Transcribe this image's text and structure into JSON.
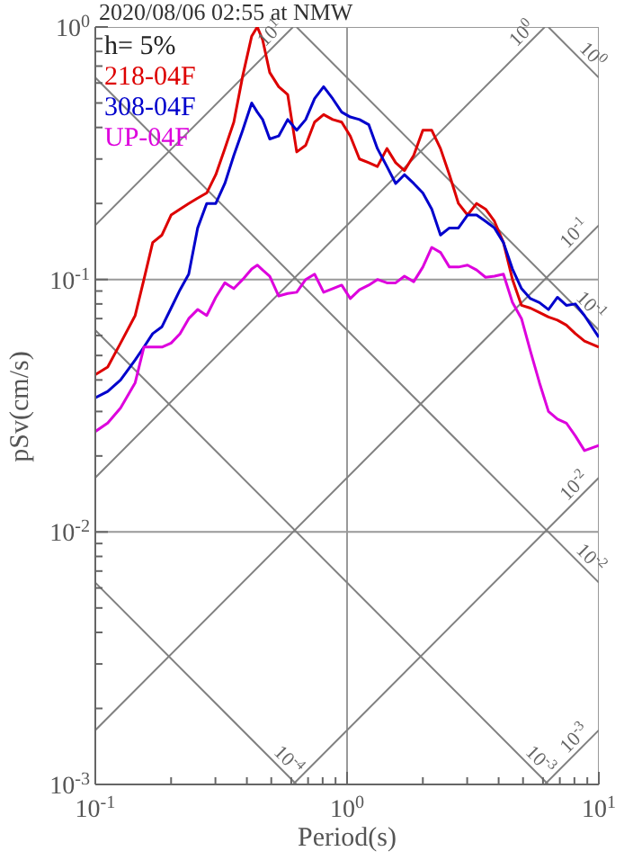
{
  "chart_data": {
    "type": "line",
    "title": "2020/08/06 02:55 at NMW",
    "xlabel": "Period(s)",
    "ylabel": "pSv(cm/s)",
    "annotations": [
      "h= 5%"
    ],
    "log": "xy",
    "grid": true,
    "legend": "top left",
    "marker": "none",
    "line_style": "solid",
    "xlim": [
      0.1,
      10
    ],
    "ylim": [
      0.001,
      1
    ],
    "xticks": [
      {
        "value": 0.1,
        "label": "10$^{-1}$"
      },
      {
        "value": 0.2,
        "label": null
      },
      {
        "value": 0.3,
        "label": null
      },
      {
        "value": 0.4,
        "label": null
      },
      {
        "value": 0.5,
        "label": null
      },
      {
        "value": 0.6,
        "label": null
      },
      {
        "value": 0.7,
        "label": null
      },
      {
        "value": 0.8,
        "label": null
      },
      {
        "value": 0.9,
        "label": null
      },
      {
        "value": 1,
        "label": "10$^{0}$"
      },
      {
        "value": 2,
        "label": null
      },
      {
        "value": 3,
        "label": null
      },
      {
        "value": 4,
        "label": null
      },
      {
        "value": 5,
        "label": null
      },
      {
        "value": 6,
        "label": null
      },
      {
        "value": 7,
        "label": null
      },
      {
        "value": 8,
        "label": null
      },
      {
        "value": 9,
        "label": null
      },
      {
        "value": 10,
        "label": "10$^{1}$"
      }
    ],
    "yticks": [
      {
        "value": 0.001,
        "label": "10$^{-3}$"
      },
      {
        "value": 0.002,
        "label": null
      },
      {
        "value": 0.003,
        "label": null
      },
      {
        "value": 0.004,
        "label": null
      },
      {
        "value": 0.005,
        "label": null
      },
      {
        "value": 0.006,
        "label": null
      },
      {
        "value": 0.007,
        "label": null
      },
      {
        "value": 0.008,
        "label": null
      },
      {
        "value": 0.009,
        "label": null
      },
      {
        "value": 0.01,
        "label": "10$^{-2}$"
      },
      {
        "value": 0.02,
        "label": null
      },
      {
        "value": 0.03,
        "label": null
      },
      {
        "value": 0.04,
        "label": null
      },
      {
        "value": 0.05,
        "label": null
      },
      {
        "value": 0.06,
        "label": null
      },
      {
        "value": 0.07,
        "label": null
      },
      {
        "value": 0.08,
        "label": null
      },
      {
        "value": 0.09,
        "label": null
      },
      {
        "value": 0.1,
        "label": "10$^{-1}$"
      },
      {
        "value": 0.2,
        "label": null
      },
      {
        "value": 0.3,
        "label": null
      },
      {
        "value": 0.4,
        "label": null
      },
      {
        "value": 0.5,
        "label": null
      },
      {
        "value": 0.6,
        "label": null
      },
      {
        "value": 0.7,
        "label": null
      },
      {
        "value": 0.8,
        "label": null
      },
      {
        "value": 0.9,
        "label": null
      },
      {
        "value": 1,
        "label": "10$^{0}$"
      }
    ],
    "x": [
      0.1,
      0.112,
      0.126,
      0.144,
      0.156,
      0.169,
      0.184,
      0.2,
      0.217,
      0.235,
      0.255,
      0.277,
      0.301,
      0.327,
      0.355,
      0.385,
      0.418,
      0.44,
      0.462,
      0.493,
      0.535,
      0.581,
      0.631,
      0.685,
      0.743,
      0.807,
      0.877,
      0.952,
      1.03,
      1.12,
      1.22,
      1.32,
      1.44,
      1.56,
      1.69,
      1.84,
      2.0,
      2.17,
      2.35,
      2.55,
      2.77,
      3.01,
      3.27,
      3.55,
      3.85,
      4.18,
      4.54,
      4.93,
      5.35,
      5.81,
      6.31,
      6.85,
      7.43,
      8.07,
      8.77,
      10
    ],
    "series": [
      {
        "name": "218-04F",
        "color": "#dd0000",
        "values": [
          0.042,
          0.045,
          0.056,
          0.072,
          0.1,
          0.14,
          0.15,
          0.18,
          0.19,
          0.2,
          0.21,
          0.22,
          0.26,
          0.33,
          0.42,
          0.64,
          0.92,
          1,
          0.89,
          0.66,
          0.58,
          0.54,
          0.32,
          0.34,
          0.42,
          0.45,
          0.43,
          0.42,
          0.37,
          0.3,
          0.29,
          0.28,
          0.33,
          0.29,
          0.27,
          0.31,
          0.39,
          0.39,
          0.33,
          0.26,
          0.2,
          0.18,
          0.2,
          0.19,
          0.17,
          0.14,
          0.1,
          0.079,
          0.077,
          0.074,
          0.071,
          0.069,
          0.066,
          0.061,
          0.057,
          0.054
        ]
      },
      {
        "name": "308-04F",
        "color": "#0000cc",
        "values": [
          0.034,
          0.036,
          0.04,
          0.048,
          0.054,
          0.061,
          0.065,
          0.077,
          0.091,
          0.105,
          0.16,
          0.2,
          0.2,
          0.24,
          0.31,
          0.39,
          0.5,
          0.46,
          0.43,
          0.36,
          0.37,
          0.43,
          0.39,
          0.43,
          0.52,
          0.58,
          0.52,
          0.46,
          0.44,
          0.43,
          0.41,
          0.33,
          0.28,
          0.24,
          0.26,
          0.24,
          0.22,
          0.19,
          0.15,
          0.16,
          0.16,
          0.18,
          0.18,
          0.17,
          0.16,
          0.14,
          0.11,
          0.092,
          0.084,
          0.081,
          0.076,
          0.085,
          0.079,
          0.08,
          0.072,
          0.059
        ]
      },
      {
        "name": "UP-04F",
        "color": "#dd00dd",
        "values": [
          0.025,
          0.027,
          0.031,
          0.039,
          0.054,
          0.054,
          0.054,
          0.056,
          0.061,
          0.07,
          0.076,
          0.072,
          0.085,
          0.097,
          0.092,
          0.1,
          0.11,
          0.114,
          0.109,
          0.103,
          0.086,
          0.088,
          0.089,
          0.1,
          0.105,
          0.089,
          0.092,
          0.095,
          0.084,
          0.091,
          0.095,
          0.1,
          0.097,
          0.097,
          0.103,
          0.098,
          0.112,
          0.134,
          0.128,
          0.112,
          0.112,
          0.114,
          0.109,
          0.102,
          0.103,
          0.105,
          0.081,
          0.07,
          0.052,
          0.039,
          0.03,
          0.028,
          0.027,
          0.024,
          0.021,
          0.022
        ]
      },
      {
        "name": "10$^{1}$",
        "color": "#808080",
        "x": [
          0.1,
          0.61
        ],
        "values": [
          0.164,
          1
        ]
      },
      {
        "name": "10$^{0}$",
        "color": "#808080",
        "x": [
          0.1,
          6.1
        ],
        "values": [
          0.0164,
          1
        ]
      },
      {
        "name": "10$^{-1}$",
        "color": "#808080",
        "x": [
          0.1,
          10
        ],
        "values": [
          0.00164,
          0.164
        ]
      },
      {
        "name": "10$^{-2}$",
        "color": "#808080",
        "x": [
          0.61,
          10
        ],
        "values": [
          0.001,
          0.0164
        ]
      },
      {
        "name": "10$^{-3}$",
        "color": "#808080",
        "x": [
          6.1,
          10
        ],
        "values": [
          0.001,
          0.00164
        ]
      },
      {
        "name": "10$^{0}$",
        "color": "#808080",
        "x": [
          6.3,
          10
        ],
        "values": [
          1,
          0.63
        ]
      },
      {
        "name": "10$^{-1}$",
        "color": "#808080",
        "x": [
          0.63,
          10
        ],
        "values": [
          1,
          0.063
        ]
      },
      {
        "name": "10$^{-2}$",
        "color": "#808080",
        "x": [
          0.1,
          10
        ],
        "values": [
          0.63,
          0.0063
        ]
      },
      {
        "name": "10$^{-3}$",
        "color": "#808080",
        "x": [
          0.1,
          6.3
        ],
        "values": [
          0.063,
          0.001
        ]
      },
      {
        "name": "10$^{-4}$",
        "color": "#808080",
        "x": [
          0.1,
          0.63
        ],
        "values": [
          0.0063,
          0.001
        ]
      }
    ]
  }
}
